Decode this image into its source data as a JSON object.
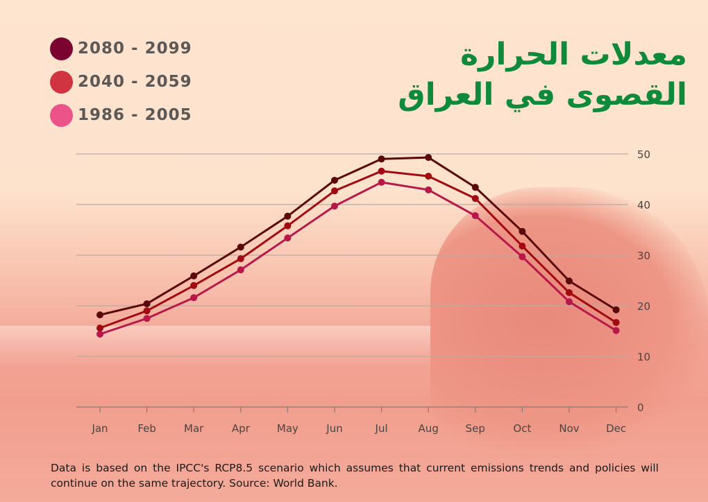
{
  "title_line1": "معدلات الحرارة",
  "title_line2": "القصوى في العراق",
  "note": "Data is based on the IPCC's RCP8.5 scenario which assumes that current emissions trends and policies will continue on the same trajectory. Source: World Bank.",
  "chart_data": {
    "type": "line",
    "title": "معدلات الحرارة القصوى في العراق",
    "xlabel": "",
    "ylabel": "",
    "categories": [
      "Jan",
      "Feb",
      "Mar",
      "Apr",
      "May",
      "Jun",
      "Jul",
      "Aug",
      "Sep",
      "Oct",
      "Nov",
      "Dec"
    ],
    "ylim": [
      0,
      50
    ],
    "yticks": [
      0,
      10,
      20,
      30,
      40,
      50
    ],
    "grid": true,
    "legend_position": "top-left",
    "series": [
      {
        "name": "2080 - 2099",
        "legend_color": "#7a0330",
        "line_color": "#5a0808",
        "values": [
          18.2,
          20.4,
          25.9,
          31.6,
          37.7,
          44.8,
          49.0,
          49.3,
          43.4,
          34.7,
          24.9,
          19.2
        ]
      },
      {
        "name": "2040 - 2059",
        "legend_color": "#d03440",
        "line_color": "#a00a10",
        "values": [
          15.6,
          19.0,
          24.0,
          29.3,
          35.8,
          42.7,
          46.6,
          45.6,
          41.2,
          31.8,
          22.6,
          16.7
        ]
      },
      {
        "name": "1986 - 2005",
        "legend_color": "#ec5388",
        "line_color": "#b8174a",
        "values": [
          14.4,
          17.5,
          21.6,
          27.1,
          33.4,
          39.7,
          44.4,
          42.9,
          37.8,
          29.7,
          20.8,
          15.1
        ]
      }
    ]
  }
}
